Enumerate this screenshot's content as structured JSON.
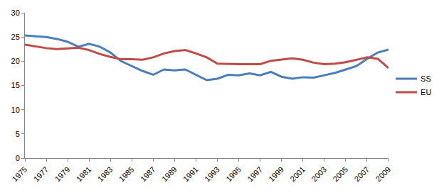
{
  "chart_data": {
    "type": "line",
    "x": [
      1975,
      1976,
      1977,
      1978,
      1979,
      1980,
      1981,
      1982,
      1983,
      1984,
      1985,
      1986,
      1987,
      1988,
      1989,
      1990,
      1991,
      1992,
      1993,
      1994,
      1995,
      1996,
      1997,
      1998,
      1999,
      2000,
      2001,
      2002,
      2003,
      2004,
      2005,
      2006,
      2007,
      2008,
      2009
    ],
    "series": [
      {
        "name": "SS",
        "color": "#4a7ebb",
        "values": [
          25.3,
          25.1,
          25.0,
          24.6,
          24.0,
          23.0,
          23.6,
          23.0,
          21.8,
          20.0,
          19.0,
          18.0,
          17.2,
          18.3,
          18.1,
          18.3,
          17.2,
          16.1,
          16.4,
          17.2,
          17.1,
          17.5,
          17.1,
          17.8,
          16.8,
          16.4,
          16.7,
          16.6,
          17.1,
          17.6,
          18.3,
          19.0,
          20.5,
          21.8,
          22.4
        ]
      },
      {
        "name": "EU",
        "color": "#be4b48",
        "values": [
          23.4,
          23.0,
          22.7,
          22.5,
          22.6,
          22.8,
          22.3,
          21.5,
          20.9,
          20.4,
          20.4,
          20.3,
          20.8,
          21.6,
          22.1,
          22.3,
          21.6,
          20.8,
          19.5,
          19.4,
          19.4,
          19.4,
          19.4,
          20.1,
          20.3,
          20.6,
          20.3,
          19.7,
          19.4,
          19.5,
          19.8,
          20.3,
          20.8,
          20.5,
          18.6
        ]
      }
    ],
    "xlim": [
      1975,
      2009
    ],
    "xticks": [
      1975,
      1977,
      1979,
      1981,
      1983,
      1985,
      1987,
      1989,
      1991,
      1993,
      1995,
      1997,
      1999,
      2001,
      2003,
      2005,
      2007,
      2009
    ],
    "ylim": [
      0,
      30
    ],
    "yticks": [
      0,
      5,
      10,
      15,
      20,
      25,
      30
    ],
    "grid": false,
    "legend": "right"
  }
}
